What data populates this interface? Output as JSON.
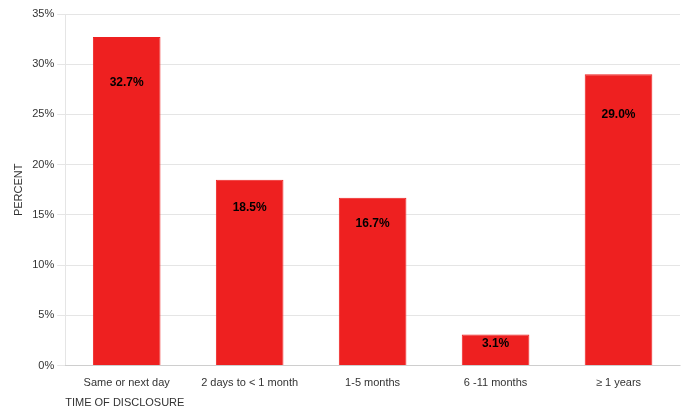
{
  "chart_data": {
    "type": "bar",
    "categories": [
      "Same or next day",
      "2 days to < 1 month",
      "1-5 months",
      "6 -11 months",
      "≥ 1 years"
    ],
    "values": [
      32.7,
      18.5,
      16.7,
      3.1,
      29.0
    ],
    "value_labels": [
      "32.7%",
      "18.5%",
      "16.7%",
      "3.1%",
      "29.0%"
    ],
    "data_labels": true,
    "color": "#EE2020",
    "y_label": "PERCENT",
    "x_label": "TIME OF DISCLOSURE",
    "ylim": [
      0,
      35
    ],
    "yticks": [
      {
        "value": 0,
        "label": "0%"
      },
      {
        "value": 5,
        "label": "5%"
      },
      {
        "value": 10,
        "label": "10%"
      },
      {
        "value": 15,
        "label": "15%"
      },
      {
        "value": 20,
        "label": "20%"
      },
      {
        "value": 25,
        "label": "25%"
      },
      {
        "value": 30,
        "label": "30%"
      },
      {
        "value": 35,
        "label": "35%"
      }
    ],
    "grid": true
  }
}
